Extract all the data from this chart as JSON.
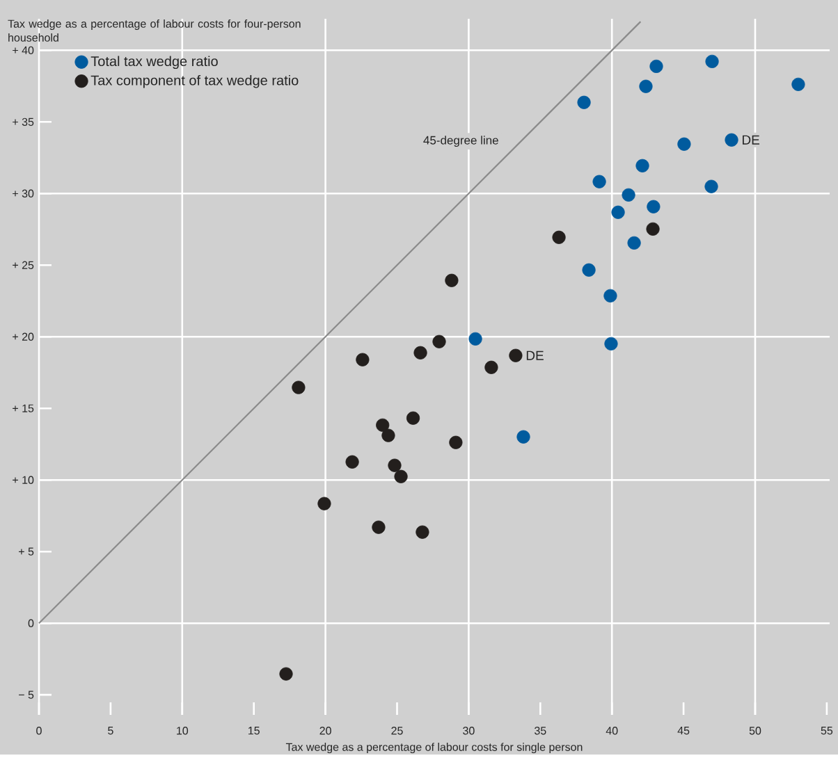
{
  "chart_data": {
    "type": "scatter",
    "xlabel": "Tax wedge as a percentage of labour costs for single person",
    "ylabel": "Tax wedge as a percentage of labour costs for four-person household",
    "xlim": [
      0,
      55.2
    ],
    "ylim": [
      -6.4,
      42.2
    ],
    "xticks": [
      0,
      5,
      10,
      15,
      20,
      25,
      30,
      35,
      40,
      45,
      50,
      55
    ],
    "yticks": [
      {
        "value": -5,
        "label": "− 5"
      },
      {
        "value": 0,
        "label": "0"
      },
      {
        "value": 5,
        "label": "+ 5"
      },
      {
        "value": 10,
        "label": "+ 10"
      },
      {
        "value": 15,
        "label": "+ 15"
      },
      {
        "value": 20,
        "label": "+ 20"
      },
      {
        "value": 25,
        "label": "+ 25"
      },
      {
        "value": 30,
        "label": "+ 30"
      },
      {
        "value": 35,
        "label": "+ 35"
      },
      {
        "value": 40,
        "label": "+ 40"
      }
    ],
    "grid": true,
    "legend": "top left",
    "marker": "circle",
    "series": [
      {
        "name": "Total tax wedge ratio",
        "color": "#005b9e",
        "x": [
          38.05,
          42.37,
          43.1,
          46.99,
          53.01,
          45.04,
          48.35,
          42.13,
          39.12,
          46.94,
          41.16,
          40.43,
          42.9,
          41.55,
          38.39,
          39.89,
          39.94,
          30.47,
          33.82
        ],
        "values": [
          36.36,
          37.48,
          38.88,
          39.22,
          37.62,
          33.45,
          33.74,
          31.94,
          30.83,
          30.49,
          29.9,
          28.69,
          29.08,
          26.55,
          24.66,
          22.86,
          19.51,
          19.85,
          13.01
        ]
      },
      {
        "name": "Tax component of tax wedge ratio",
        "color": "#231f1d",
        "x": [
          36.3,
          42.86,
          28.81,
          27.94,
          26.63,
          33.28,
          31.58,
          22.59,
          18.12,
          26.12,
          23.99,
          24.39,
          29.1,
          21.87,
          24.83,
          25.27,
          19.92,
          23.71,
          26.77,
          17.25
        ],
        "values": [
          26.94,
          27.52,
          23.93,
          19.66,
          18.88,
          18.69,
          17.86,
          18.4,
          16.46,
          14.32,
          13.83,
          13.11,
          12.62,
          11.26,
          11.02,
          10.24,
          8.35,
          6.7,
          6.36,
          -3.54
        ]
      },
      {
        "type": "line",
        "marker": "none",
        "color": "#8a8a8a",
        "x": [
          0,
          42
        ],
        "values": [
          0,
          42
        ]
      }
    ],
    "annotations": [
      "45-degree line",
      {
        "text": "DE",
        "x": 48.35,
        "y": 33.74
      },
      {
        "text": "DE",
        "x": 33.28,
        "y": 18.69
      }
    ]
  }
}
